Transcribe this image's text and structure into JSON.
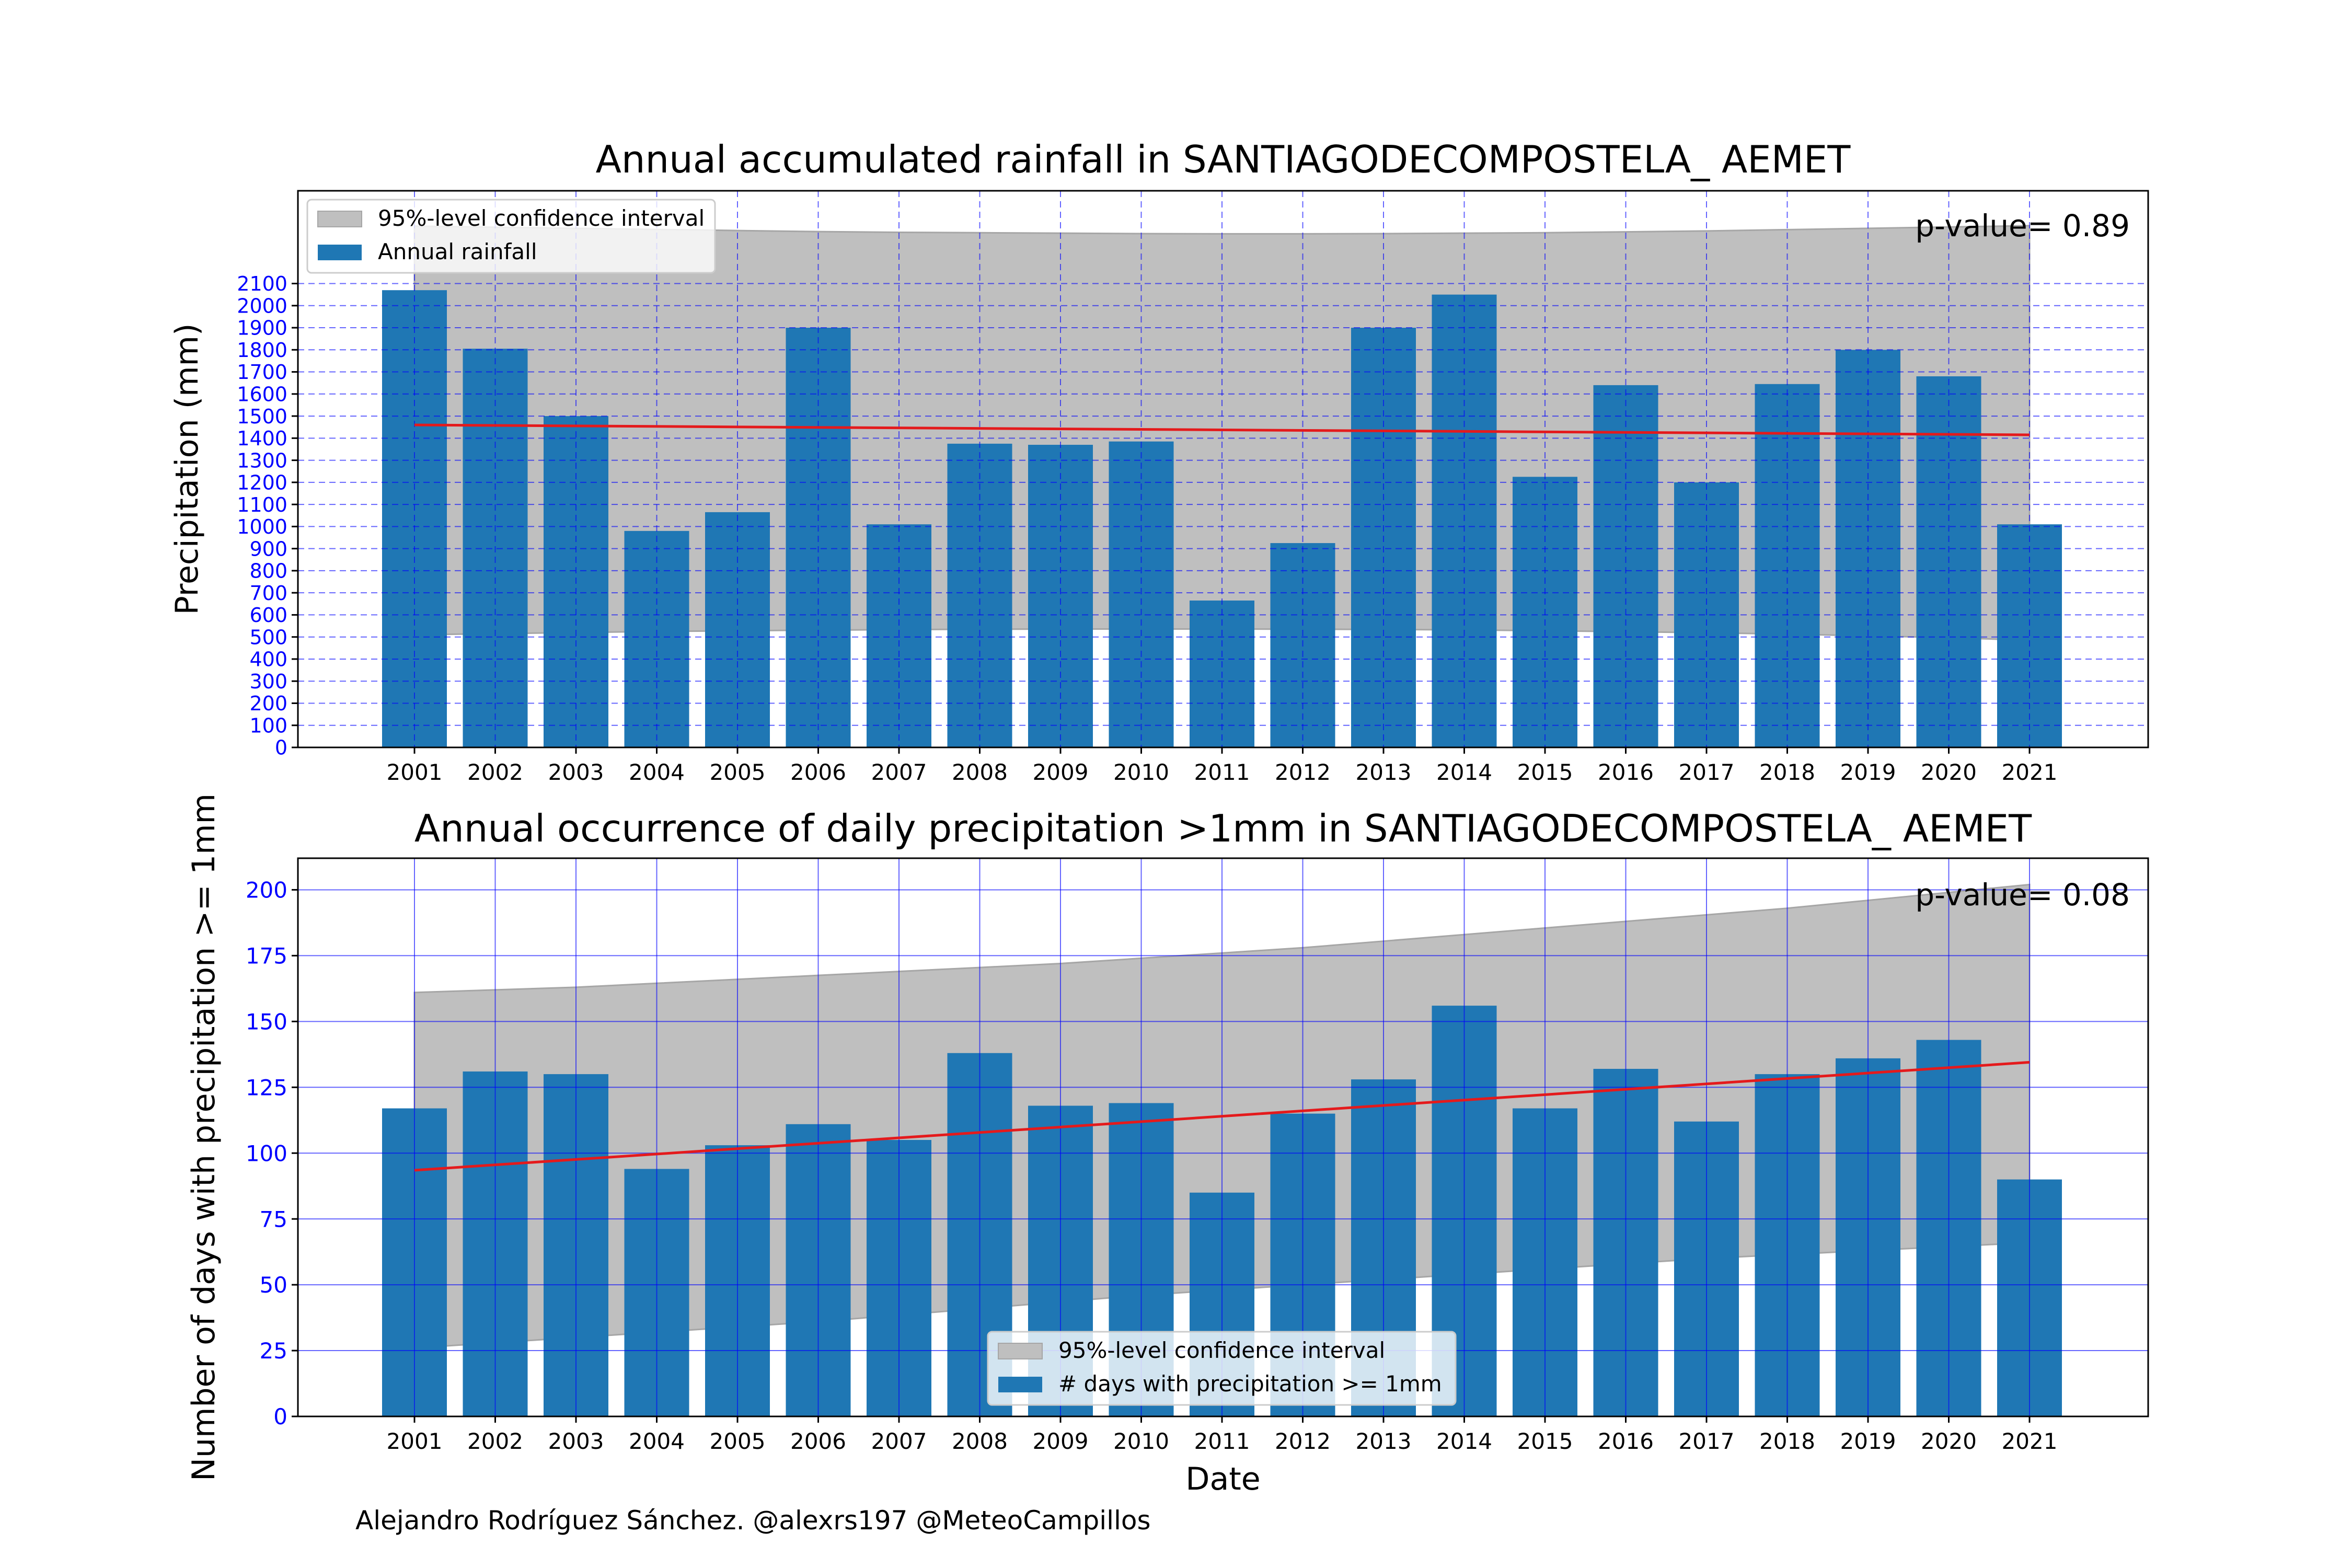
{
  "credit": "Alejandro Rodríguez Sánchez. @alexrs197 @MeteoCampillos",
  "colors": {
    "bar": "#1f77b4",
    "band": "#bfbfbf",
    "band_edge": "#a6a6a6",
    "trend": "#e41a1c",
    "grid": "#0000ff",
    "ytick": "#0000ff"
  },
  "chart_data": [
    {
      "type": "bar",
      "title": "Annual accumulated rainfall in SANTIAGODECOMPOSTELA_ AEMET",
      "xlabel": "",
      "ylabel": "Precipitation (mm)",
      "categories": [
        "2001",
        "2002",
        "2003",
        "2004",
        "2005",
        "2006",
        "2007",
        "2008",
        "2009",
        "2010",
        "2011",
        "2012",
        "2013",
        "2014",
        "2015",
        "2016",
        "2017",
        "2018",
        "2019",
        "2020",
        "2021"
      ],
      "yticks": [
        0,
        100,
        200,
        300,
        400,
        500,
        600,
        700,
        800,
        900,
        1000,
        1100,
        1200,
        1300,
        1400,
        1500,
        1600,
        1700,
        1800,
        1900,
        2000,
        2100
      ],
      "ylim": [
        0,
        2520
      ],
      "grid": true,
      "grid_style": "dashed",
      "series": [
        {
          "name": "Annual rainfall",
          "values": [
            2070,
            1805,
            1500,
            980,
            1065,
            1900,
            1010,
            1375,
            1370,
            1385,
            665,
            925,
            1900,
            2050,
            1225,
            1640,
            1200,
            1645,
            1800,
            1680,
            1010
          ]
        }
      ],
      "trend": {
        "start": 1460,
        "end": 1415
      },
      "confidence_band": {
        "name": "95%-level confidence interval",
        "upper": [
          2360,
          2355,
          2350,
          2345,
          2340,
          2335,
          2332,
          2330,
          2328,
          2326,
          2325,
          2325,
          2326,
          2328,
          2330,
          2334,
          2338,
          2344,
          2350,
          2356,
          2362
        ],
        "lower": [
          510,
          515,
          520,
          525,
          528,
          531,
          533,
          535,
          536,
          536,
          536,
          535,
          534,
          532,
          528,
          524,
          519,
          513,
          505,
          497,
          485
        ]
      },
      "annotation": "p-value= 0.89",
      "legend": "top-left"
    },
    {
      "type": "bar",
      "title": "Annual occurrence of daily precipitation >1mm in SANTIAGODECOMPOSTELA_ AEMET",
      "xlabel": "Date",
      "ylabel": "Number of days with precipitation >= 1mm",
      "categories": [
        "2001",
        "2002",
        "2003",
        "2004",
        "2005",
        "2006",
        "2007",
        "2008",
        "2009",
        "2010",
        "2011",
        "2012",
        "2013",
        "2014",
        "2015",
        "2016",
        "2017",
        "2018",
        "2019",
        "2020",
        "2021"
      ],
      "yticks": [
        0,
        25,
        50,
        75,
        100,
        125,
        150,
        175,
        200
      ],
      "ylim": [
        0,
        212
      ],
      "grid": true,
      "grid_style": "solid",
      "series": [
        {
          "name": "# days with precipitation >= 1mm",
          "values": [
            117,
            131,
            130,
            94,
            103,
            111,
            105,
            138,
            118,
            119,
            85,
            115,
            128,
            156,
            117,
            132,
            112,
            130,
            136,
            143,
            90
          ]
        }
      ],
      "trend": {
        "start": 93.5,
        "end": 134.5
      },
      "confidence_band": {
        "name": "95%-level confidence interval",
        "upper": [
          161,
          162,
          163,
          164.5,
          166,
          167.5,
          169,
          170.5,
          172,
          174,
          176,
          178,
          180.5,
          183,
          185.5,
          188,
          190.5,
          193,
          196,
          199,
          202
        ],
        "lower": [
          26,
          28,
          30,
          32,
          34,
          36,
          38.5,
          41,
          43.5,
          46,
          48,
          50,
          52,
          54,
          56,
          58,
          60,
          61.5,
          63,
          64.5,
          66
        ]
      },
      "annotation": "p-value= 0.08",
      "legend": "bottom-center"
    }
  ]
}
